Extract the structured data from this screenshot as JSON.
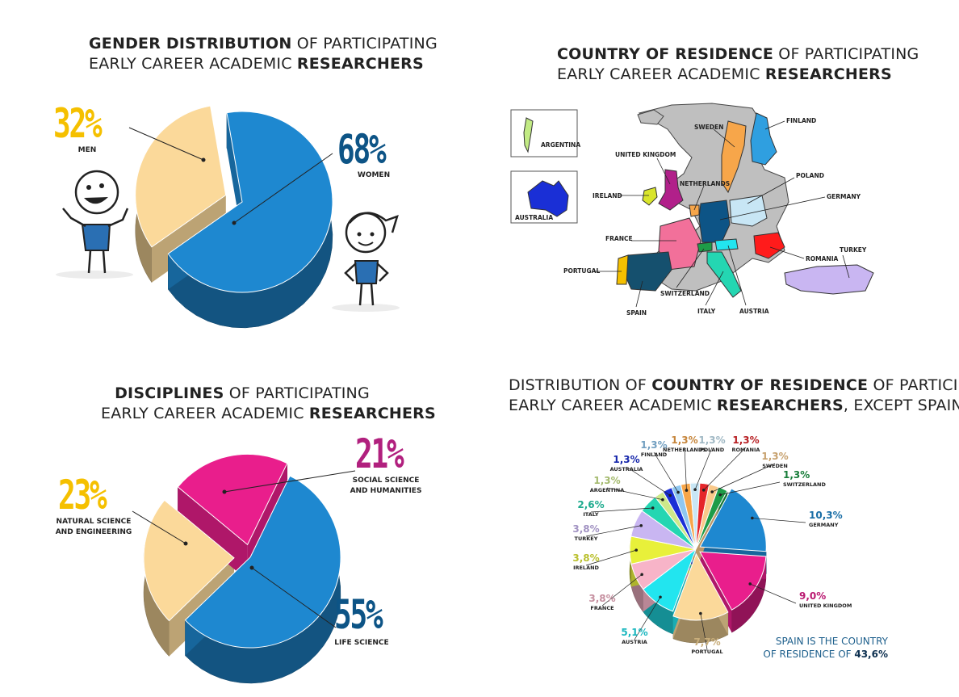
{
  "panels": {
    "gender": {
      "title_bold": "GENDER DISTRIBUTION",
      "title_rest1": " OF PARTICIPATING",
      "title_line2a": "EARLY CAREER ACADEMIC ",
      "title_line2b": "RESEARCHERS",
      "men_pct": "32%",
      "men_label": "MEN",
      "women_pct": "68%",
      "women_label": "WOMEN"
    },
    "country": {
      "title_bold": "COUNTRY OF RESIDENCE",
      "title_rest1": " OF PARTICIPATING",
      "title_line2a": "EARLY CAREER ACADEMIC ",
      "title_line2b": "RESEARCHERS",
      "inset_argentina": "ARGENTINA",
      "inset_australia": "AUSTRALIA",
      "labels": {
        "finland": "FINLAND",
        "sweden": "SWEDEN",
        "uk": "UNITED KINGDOM",
        "poland": "POLAND",
        "netherlands": "NETHERLANDS",
        "ireland": "IRELAND",
        "germany": "GERMANY",
        "france": "FRANCE",
        "turkey": "TURKEY",
        "romania": "ROMANIA",
        "portugal": "PORTUGAL",
        "switzerland": "SWITZERLAND",
        "spain": "SPAIN",
        "italy": "ITALY",
        "austria": "AUSTRIA"
      }
    },
    "disciplines": {
      "title_bold": "DISCIPLINES",
      "title_rest1": " OF PARTICIPATING",
      "title_line2a": "EARLY CAREER ACADEMIC ",
      "title_line2b": "RESEARCHERS",
      "natural_pct": "23%",
      "natural_label1": "NATURAL SCIENCE",
      "natural_label2": "AND ENGINEERING",
      "social_pct": "21%",
      "social_label1": "SOCIAL SCIENCE",
      "social_label2": "AND HUMANITIES",
      "life_pct": "55%",
      "life_label": "LIFE SCIENCE"
    },
    "distribution": {
      "title_a": "DISTRIBUTION OF ",
      "title_bold": "COUNTRY OF RESIDENCE",
      "title_rest1": " OF PARTICIPATING",
      "title_line2a": "EARLY CAREER ACADEMIC ",
      "title_line2b": "RESEARCHERS",
      "title_line2c": ", EXCEPT SPAIN",
      "note_line1": "SPAIN IS THE COUNTRY",
      "note_line2a": "OF RESIDENCE OF ",
      "note_line2b": "43,6%"
    }
  },
  "colors": {
    "blue": "#1e88d0",
    "blue_dark": "#1b4a72",
    "tan": "#fbd99a",
    "gold": "#f5c000",
    "magenta": "#e91e8c",
    "navy": "#0d5486"
  },
  "chart_data": [
    {
      "type": "pie",
      "title": "GENDER DISTRIBUTION OF PARTICIPATING EARLY CAREER ACADEMIC RESEARCHERS",
      "categories": [
        "MEN",
        "WOMEN"
      ],
      "values": [
        32,
        68
      ],
      "colors": [
        "#fbd99a",
        "#1e88d0"
      ]
    },
    {
      "type": "pie",
      "title": "DISCIPLINES OF PARTICIPATING EARLY CAREER ACADEMIC RESEARCHERS",
      "categories": [
        "NATURAL SCIENCE AND ENGINEERING",
        "SOCIAL SCIENCE AND HUMANITIES",
        "LIFE SCIENCE"
      ],
      "values": [
        23,
        21,
        55
      ],
      "colors": [
        "#fbd99a",
        "#e91e8c",
        "#1e88d0"
      ]
    },
    {
      "type": "pie",
      "title": "DISTRIBUTION OF COUNTRY OF RESIDENCE OF PARTICIPATING EARLY CAREER ACADEMIC RESEARCHERS, EXCEPT SPAIN",
      "categories": [
        "GERMANY",
        "UNITED KINGDOM",
        "PORTUGAL",
        "AUSTRIA",
        "FRANCE",
        "IRELAND",
        "TURKEY",
        "ITALY",
        "ARGENTINA",
        "AUSTRALIA",
        "FINLAND",
        "NETHERLANDS",
        "POLAND",
        "ROMANIA",
        "SWEDEN",
        "SWITZERLAND"
      ],
      "value_labels": [
        "10,3%",
        "9,0%",
        "7,7%",
        "5,1%",
        "3,8%",
        "3,8%",
        "3,8%",
        "2,6%",
        "1,3%",
        "1,3%",
        "1,3%",
        "1,3%",
        "1,3%",
        "1,3%",
        "1,3%",
        "1,3%"
      ],
      "values": [
        10.3,
        9.0,
        7.7,
        5.1,
        3.8,
        3.8,
        3.8,
        2.6,
        1.3,
        1.3,
        1.3,
        1.3,
        1.3,
        1.3,
        1.3,
        1.3
      ],
      "colors": [
        "#1e88d0",
        "#e91e8c",
        "#fbd99a",
        "#22e5ef",
        "#f7b4c8",
        "#e8f03a",
        "#c9b6f2",
        "#24d6b2",
        "#cde98a",
        "#1a2fd6",
        "#8fc7f0",
        "#f7a64a",
        "#c8e6f5",
        "#e5262a",
        "#f9c98a",
        "#1e9c48"
      ]
    }
  ]
}
